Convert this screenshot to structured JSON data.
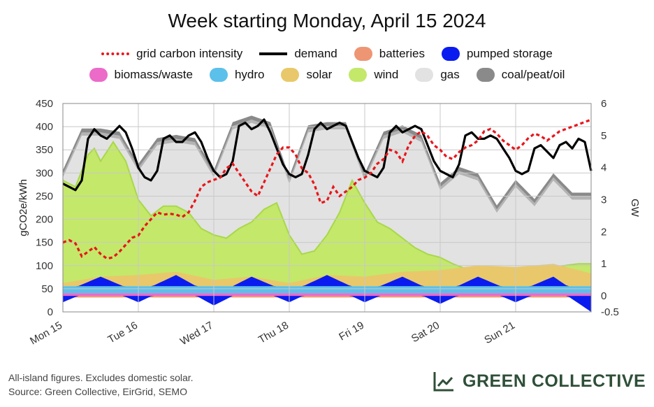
{
  "chart_data": {
    "type": "area",
    "title": "Week starting Monday, April 15 2024",
    "xlabel": "",
    "ylabel_left": "gCO2e/kWh",
    "ylabel_right": "GW",
    "left_ylim": [
      0,
      450
    ],
    "left_yticks": [
      "0",
      "50",
      "100",
      "150",
      "200",
      "250",
      "300",
      "350",
      "400",
      "450"
    ],
    "right_ylim": [
      -0.5,
      6
    ],
    "right_yticks": [
      "-0.5",
      "0",
      "1",
      "2",
      "3",
      "4",
      "5",
      "6"
    ],
    "x_ticks": [
      "Mon 15",
      "Tue 16",
      "Wed 17",
      "Thu 18",
      "Fri 19",
      "Sat 20",
      "Sun 21"
    ],
    "x_unit": "hours since Mon 15 00:00",
    "xlim": [
      0,
      168
    ],
    "grid": true,
    "legend": [
      {
        "name": "grid carbon intensity",
        "style": "dashed-line",
        "color": "#e8161b"
      },
      {
        "name": "demand",
        "style": "line",
        "color": "#000000"
      },
      {
        "name": "batteries",
        "style": "area",
        "color": "#ee9574"
      },
      {
        "name": "pumped storage",
        "style": "area",
        "color": "#0a1bf0"
      },
      {
        "name": "biomass/waste",
        "style": "area",
        "color": "#ec6ac8"
      },
      {
        "name": "hydro",
        "style": "area",
        "color": "#5bc0ea"
      },
      {
        "name": "solar",
        "style": "area",
        "color": "#e8c86a"
      },
      {
        "name": "wind",
        "style": "area",
        "color": "#c4e86a"
      },
      {
        "name": "gas",
        "style": "area",
        "color": "#e2e2e2"
      },
      {
        "name": "coal/peat/oil",
        "style": "area",
        "color": "#8a8a8a"
      }
    ],
    "series": {
      "demand_gw": {
        "x": [
          0,
          2,
          4,
          6,
          8,
          10,
          12,
          14,
          16,
          18,
          20,
          22,
          24,
          26,
          28,
          30,
          32,
          34,
          36,
          38,
          40,
          42,
          44,
          46,
          48,
          50,
          52,
          54,
          56,
          58,
          60,
          62,
          64,
          66,
          68,
          70,
          72,
          74,
          76,
          78,
          80,
          82,
          84,
          86,
          88,
          90,
          92,
          94,
          96,
          98,
          100,
          102,
          104,
          106,
          108,
          110,
          112,
          114,
          116,
          118,
          120,
          122,
          124,
          126,
          128,
          130,
          132,
          134,
          136,
          138,
          140,
          142,
          144,
          146,
          148,
          150,
          152,
          154,
          156,
          158,
          160,
          162,
          164,
          166,
          168
        ],
        "y": [
          3.5,
          3.4,
          3.3,
          3.6,
          4.9,
          5.2,
          5.0,
          4.9,
          5.1,
          5.3,
          5.1,
          4.6,
          4.0,
          3.7,
          3.6,
          3.9,
          4.9,
          5.0,
          4.8,
          4.8,
          5.0,
          5.1,
          4.8,
          4.3,
          3.9,
          3.7,
          3.8,
          4.2,
          5.3,
          5.4,
          5.2,
          5.3,
          5.5,
          5.1,
          4.6,
          4.1,
          3.8,
          3.7,
          3.8,
          4.4,
          5.2,
          5.4,
          5.2,
          5.3,
          5.4,
          5.3,
          4.8,
          4.3,
          3.9,
          3.8,
          3.7,
          4.0,
          5.1,
          5.3,
          5.1,
          5.2,
          5.3,
          5.2,
          4.7,
          4.2,
          3.9,
          3.8,
          3.7,
          4.1,
          5.0,
          5.1,
          4.9,
          4.9,
          5.0,
          4.9,
          4.6,
          4.3,
          3.9,
          3.8,
          3.9,
          4.6,
          4.7,
          4.5,
          4.3,
          4.7,
          4.8,
          4.6,
          4.9,
          4.8,
          3.9
        ]
      },
      "carbon_intensity": {
        "x": [
          0,
          2,
          4,
          6,
          8,
          10,
          12,
          14,
          16,
          18,
          20,
          22,
          24,
          26,
          28,
          30,
          32,
          34,
          36,
          38,
          40,
          42,
          44,
          46,
          48,
          50,
          52,
          54,
          56,
          58,
          60,
          62,
          64,
          66,
          68,
          70,
          72,
          74,
          76,
          78,
          80,
          82,
          84,
          86,
          88,
          90,
          92,
          94,
          96,
          98,
          100,
          102,
          104,
          106,
          108,
          110,
          112,
          114,
          116,
          118,
          120,
          122,
          124,
          126,
          128,
          130,
          132,
          134,
          136,
          138,
          140,
          142,
          144,
          146,
          148,
          150,
          152,
          154,
          156,
          158,
          160,
          162,
          164,
          166,
          168
        ],
        "y": [
          150,
          155,
          148,
          120,
          130,
          140,
          125,
          115,
          118,
          130,
          145,
          160,
          165,
          185,
          200,
          215,
          210,
          212,
          210,
          205,
          215,
          240,
          270,
          280,
          285,
          290,
          310,
          320,
          300,
          280,
          260,
          250,
          280,
          310,
          340,
          355,
          355,
          340,
          310,
          300,
          275,
          235,
          240,
          270,
          250,
          260,
          270,
          285,
          290,
          300,
          320,
          330,
          350,
          345,
          325,
          360,
          380,
          390,
          380,
          360,
          350,
          335,
          330,
          345,
          355,
          360,
          370,
          390,
          395,
          385,
          370,
          360,
          350,
          360,
          375,
          385,
          380,
          370,
          380,
          390,
          395,
          400,
          405,
          410,
          415
        ]
      },
      "wind_gw": {
        "x": [
          0,
          4,
          8,
          10,
          12,
          16,
          20,
          24,
          28,
          32,
          36,
          40,
          44,
          48,
          52,
          56,
          60,
          64,
          68,
          72,
          76,
          80,
          84,
          88,
          92,
          96,
          100,
          104,
          108,
          112,
          116,
          120,
          124,
          128,
          132,
          136,
          140,
          144,
          148,
          152,
          156,
          160,
          164,
          168
        ],
        "y": [
          3.3,
          3.1,
          4.1,
          4.3,
          3.9,
          4.5,
          3.9,
          2.7,
          2.2,
          2.5,
          2.5,
          2.3,
          1.8,
          1.6,
          1.5,
          1.8,
          2.0,
          2.4,
          2.6,
          1.6,
          1.0,
          1.1,
          1.6,
          2.3,
          3.3,
          2.6,
          2.0,
          1.8,
          1.5,
          1.2,
          1.0,
          0.9,
          0.7,
          0.55,
          0.5,
          0.45,
          0.45,
          0.45,
          0.5,
          0.55,
          0.6,
          0.65,
          0.7,
          0.7
        ]
      },
      "solar_gw": {
        "x": [
          0,
          12,
          24,
          36,
          48,
          60,
          72,
          84,
          96,
          108,
          120,
          132,
          144,
          156,
          168
        ],
        "y": [
          0.1,
          0.3,
          0.35,
          0.45,
          0.2,
          0.3,
          0.1,
          0.35,
          0.3,
          0.45,
          0.5,
          0.65,
          0.6,
          0.7,
          0.4
        ]
      },
      "pumped_storage_gw": {
        "x": [
          0,
          12,
          24,
          36,
          48,
          60,
          72,
          84,
          96,
          108,
          120,
          132,
          144,
          156,
          168
        ],
        "y": [
          -0.2,
          0.3,
          -0.2,
          0.35,
          -0.3,
          0.3,
          -0.2,
          0.35,
          -0.2,
          0.3,
          -0.25,
          0.3,
          -0.2,
          0.3,
          -0.5
        ]
      },
      "gas_total_gw": {
        "x": [
          0,
          6,
          12,
          18,
          24,
          30,
          36,
          42,
          48,
          54,
          60,
          66,
          72,
          78,
          84,
          90,
          96,
          102,
          108,
          114,
          120,
          126,
          132,
          138,
          144,
          150,
          156,
          162,
          168
        ],
        "y": [
          3.7,
          5.0,
          5.0,
          4.9,
          3.9,
          4.7,
          4.8,
          4.7,
          3.7,
          5.2,
          5.4,
          5.2,
          3.5,
          5.1,
          5.2,
          5.2,
          3.6,
          4.9,
          5.1,
          4.8,
          3.3,
          3.8,
          3.6,
          2.6,
          3.4,
          2.8,
          3.6,
          3.0,
          3.0
        ]
      }
    }
  },
  "footer": {
    "note_line1": "All-island figures. Excludes domestic solar.",
    "note_line2": "Source: Green Collective, EirGrid, SEMO",
    "brand": "GREEN COLLECTIVE"
  }
}
